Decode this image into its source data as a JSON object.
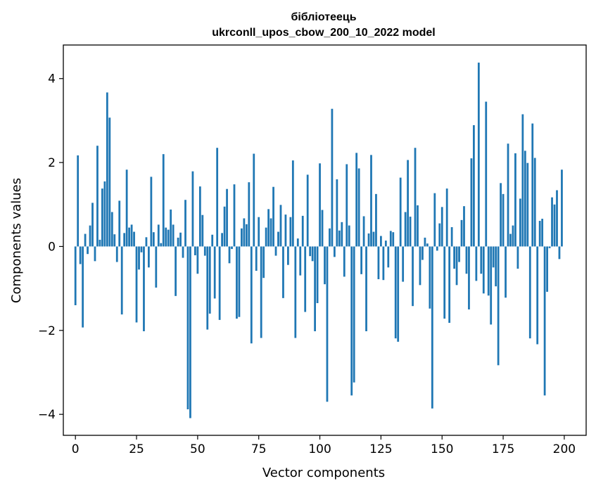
{
  "chart_data": {
    "type": "bar",
    "title_line1": "бібліотеець",
    "title_line2": "ukrconll_upos_cbow_200_10_2022 model",
    "xlabel": "Vector components",
    "ylabel": "Components values",
    "xlim": [
      -4.95,
      208.95
    ],
    "ylim": [
      -4.5,
      4.8
    ],
    "xticks": [
      0,
      25,
      50,
      75,
      100,
      125,
      150,
      175,
      200
    ],
    "xtick_labels": [
      "0",
      "25",
      "50",
      "75",
      "100",
      "125",
      "150",
      "175",
      "200"
    ],
    "yticks": [
      -4,
      -2,
      0,
      2,
      4
    ],
    "ytick_labels": [
      "−4",
      "−2",
      "0",
      "2",
      "4"
    ],
    "grid": false,
    "bar_color": "#1f77b4",
    "x": [
      0,
      1,
      2,
      3,
      4,
      5,
      6,
      7,
      8,
      9,
      10,
      11,
      12,
      13,
      14,
      15,
      16,
      17,
      18,
      19,
      20,
      21,
      22,
      23,
      24,
      25,
      26,
      27,
      28,
      29,
      30,
      31,
      32,
      33,
      34,
      35,
      36,
      37,
      38,
      39,
      40,
      41,
      42,
      43,
      44,
      45,
      46,
      47,
      48,
      49,
      50,
      51,
      52,
      53,
      54,
      55,
      56,
      57,
      58,
      59,
      60,
      61,
      62,
      63,
      64,
      65,
      66,
      67,
      68,
      69,
      70,
      71,
      72,
      73,
      74,
      75,
      76,
      77,
      78,
      79,
      80,
      81,
      82,
      83,
      84,
      85,
      86,
      87,
      88,
      89,
      90,
      91,
      92,
      93,
      94,
      95,
      96,
      97,
      98,
      99,
      100,
      101,
      102,
      103,
      104,
      105,
      106,
      107,
      108,
      109,
      110,
      111,
      112,
      113,
      114,
      115,
      116,
      117,
      118,
      119,
      120,
      121,
      122,
      123,
      124,
      125,
      126,
      127,
      128,
      129,
      130,
      131,
      132,
      133,
      134,
      135,
      136,
      137,
      138,
      139,
      140,
      141,
      142,
      143,
      144,
      145,
      146,
      147,
      148,
      149,
      150,
      151,
      152,
      153,
      154,
      155,
      156,
      157,
      158,
      159,
      160,
      161,
      162,
      163,
      164,
      165,
      166,
      167,
      168,
      169,
      170,
      171,
      172,
      173,
      174,
      175,
      176,
      177,
      178,
      179,
      180,
      181,
      182,
      183,
      184,
      185,
      186,
      187,
      188,
      189,
      190,
      191,
      192,
      193,
      194,
      195,
      196,
      197,
      198,
      199
    ],
    "values": [
      -1.4,
      2.17,
      -0.42,
      -1.93,
      0.3,
      -0.18,
      0.5,
      1.04,
      -0.35,
      2.4,
      0.16,
      1.38,
      1.55,
      3.67,
      3.07,
      0.82,
      0.29,
      -0.37,
      1.09,
      -1.62,
      0.32,
      1.83,
      0.45,
      0.52,
      0.35,
      -1.81,
      -0.55,
      -0.14,
      -2.02,
      0.22,
      -0.5,
      1.66,
      0.34,
      -0.98,
      0.52,
      0.08,
      2.2,
      0.45,
      0.4,
      0.88,
      0.52,
      -1.18,
      0.21,
      0.33,
      -0.27,
      1.11,
      -3.88,
      -4.09,
      1.79,
      -0.21,
      -0.65,
      1.43,
      0.75,
      -0.22,
      -1.98,
      -1.6,
      0.28,
      -1.24,
      2.35,
      -1.75,
      0.32,
      0.95,
      1.37,
      -0.4,
      -0.06,
      1.48,
      -1.72,
      -1.68,
      0.43,
      0.67,
      0.53,
      1.53,
      -2.31,
      2.21,
      -0.58,
      0.7,
      -2.18,
      -0.75,
      0.45,
      0.89,
      0.67,
      1.42,
      -0.22,
      0.35,
      0.99,
      -1.23,
      0.76,
      -0.44,
      0.7,
      2.05,
      -2.18,
      0.19,
      -0.69,
      0.73,
      -1.56,
      1.71,
      -0.23,
      -0.35,
      -2.02,
      -1.35,
      1.98,
      0.87,
      -0.9,
      -3.7,
      0.43,
      3.28,
      -0.25,
      1.6,
      0.38,
      0.58,
      -0.72,
      1.96,
      0.5,
      -3.55,
      -3.24,
      2.23,
      1.86,
      -0.66,
      0.72,
      -2.02,
      0.31,
      2.18,
      0.35,
      1.25,
      -0.78,
      0.25,
      -0.8,
      0.14,
      -0.5,
      0.37,
      0.34,
      -2.19,
      -2.27,
      1.64,
      -0.84,
      0.82,
      2.06,
      0.71,
      -1.42,
      2.35,
      0.98,
      -0.92,
      -0.32,
      0.21,
      0.07,
      -1.48,
      -3.86,
      1.27,
      -0.1,
      0.55,
      0.94,
      -1.72,
      1.38,
      -1.82,
      0.46,
      -0.53,
      -0.92,
      -0.37,
      0.63,
      0.96,
      -0.65,
      -1.5,
      2.1,
      2.89,
      -0.82,
      4.38,
      -0.65,
      -1.12,
      3.45,
      -1.17,
      -1.86,
      -0.5,
      -0.95,
      -2.83,
      1.51,
      1.25,
      -1.22,
      2.45,
      0.3,
      0.5,
      2.22,
      -0.53,
      1.14,
      3.15,
      2.28,
      1.99,
      -2.19,
      2.93,
      2.11,
      -2.33,
      0.61,
      0.66,
      -3.55,
      -1.08,
      -0.04,
      1.17,
      1.0,
      1.34,
      -0.3,
      1.83
    ]
  }
}
